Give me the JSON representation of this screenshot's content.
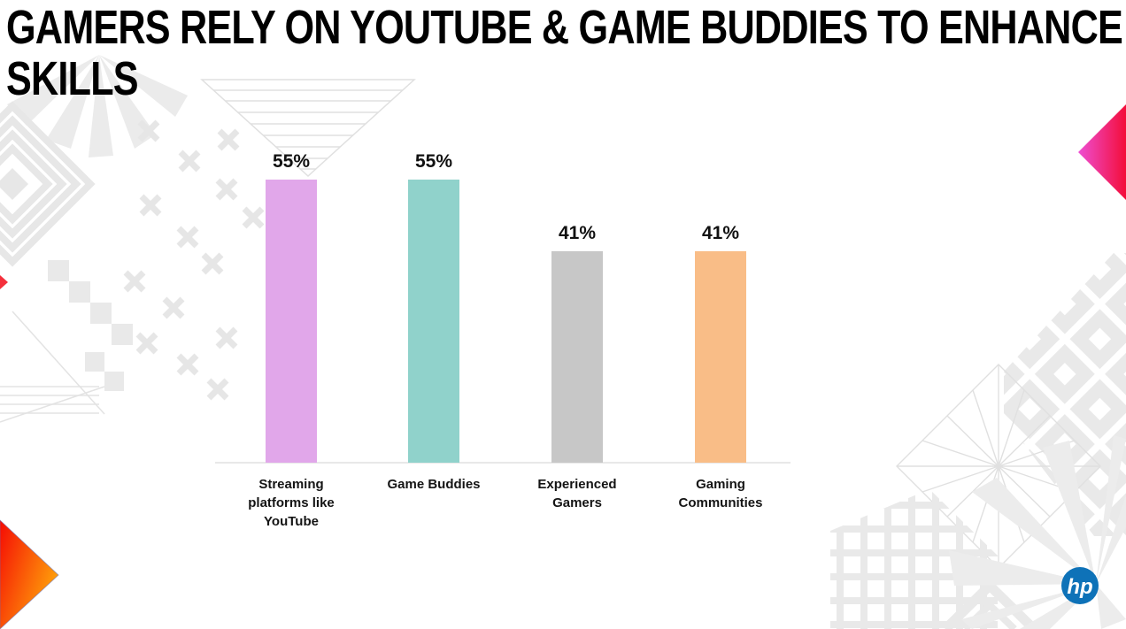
{
  "slide": {
    "title_line1": "GAMERS RELY ON YOUTUBE & GAME BUDDIES TO ENHANCE",
    "title_line2": "SKILLS",
    "brand": {
      "logo_text": "hp",
      "logo_color": "#0e72b8"
    }
  },
  "chart_data": {
    "type": "bar",
    "title": "GAMERS RELY ON YOUTUBE & GAME BUDDIES TO ENHANCE SKILLS",
    "categories": [
      "Streaming platforms like YouTube",
      "Game Buddies",
      "Experienced Gamers",
      "Gaming Communities"
    ],
    "values": [
      55,
      55,
      41,
      41
    ],
    "value_labels": [
      "55%",
      "55%",
      "41%",
      "41%"
    ],
    "bar_colors": [
      "#e1a7ea",
      "#90d2cb",
      "#c7c7c7",
      "#f9bd87"
    ],
    "xlabel": "",
    "ylabel": "",
    "ylim": [
      0,
      60
    ],
    "grid": false,
    "legend": false,
    "axis_ticks": "none",
    "value_label_position": "above-bar"
  },
  "decor": {
    "pattern_color": "#e9e9e9",
    "accent_triangles": [
      {
        "position": "bottom-left",
        "gradient": [
          "#f50b04",
          "#ffa50a"
        ]
      },
      {
        "position": "right-middle",
        "gradient": [
          "#ee4fd3",
          "#f30d39"
        ]
      }
    ]
  }
}
